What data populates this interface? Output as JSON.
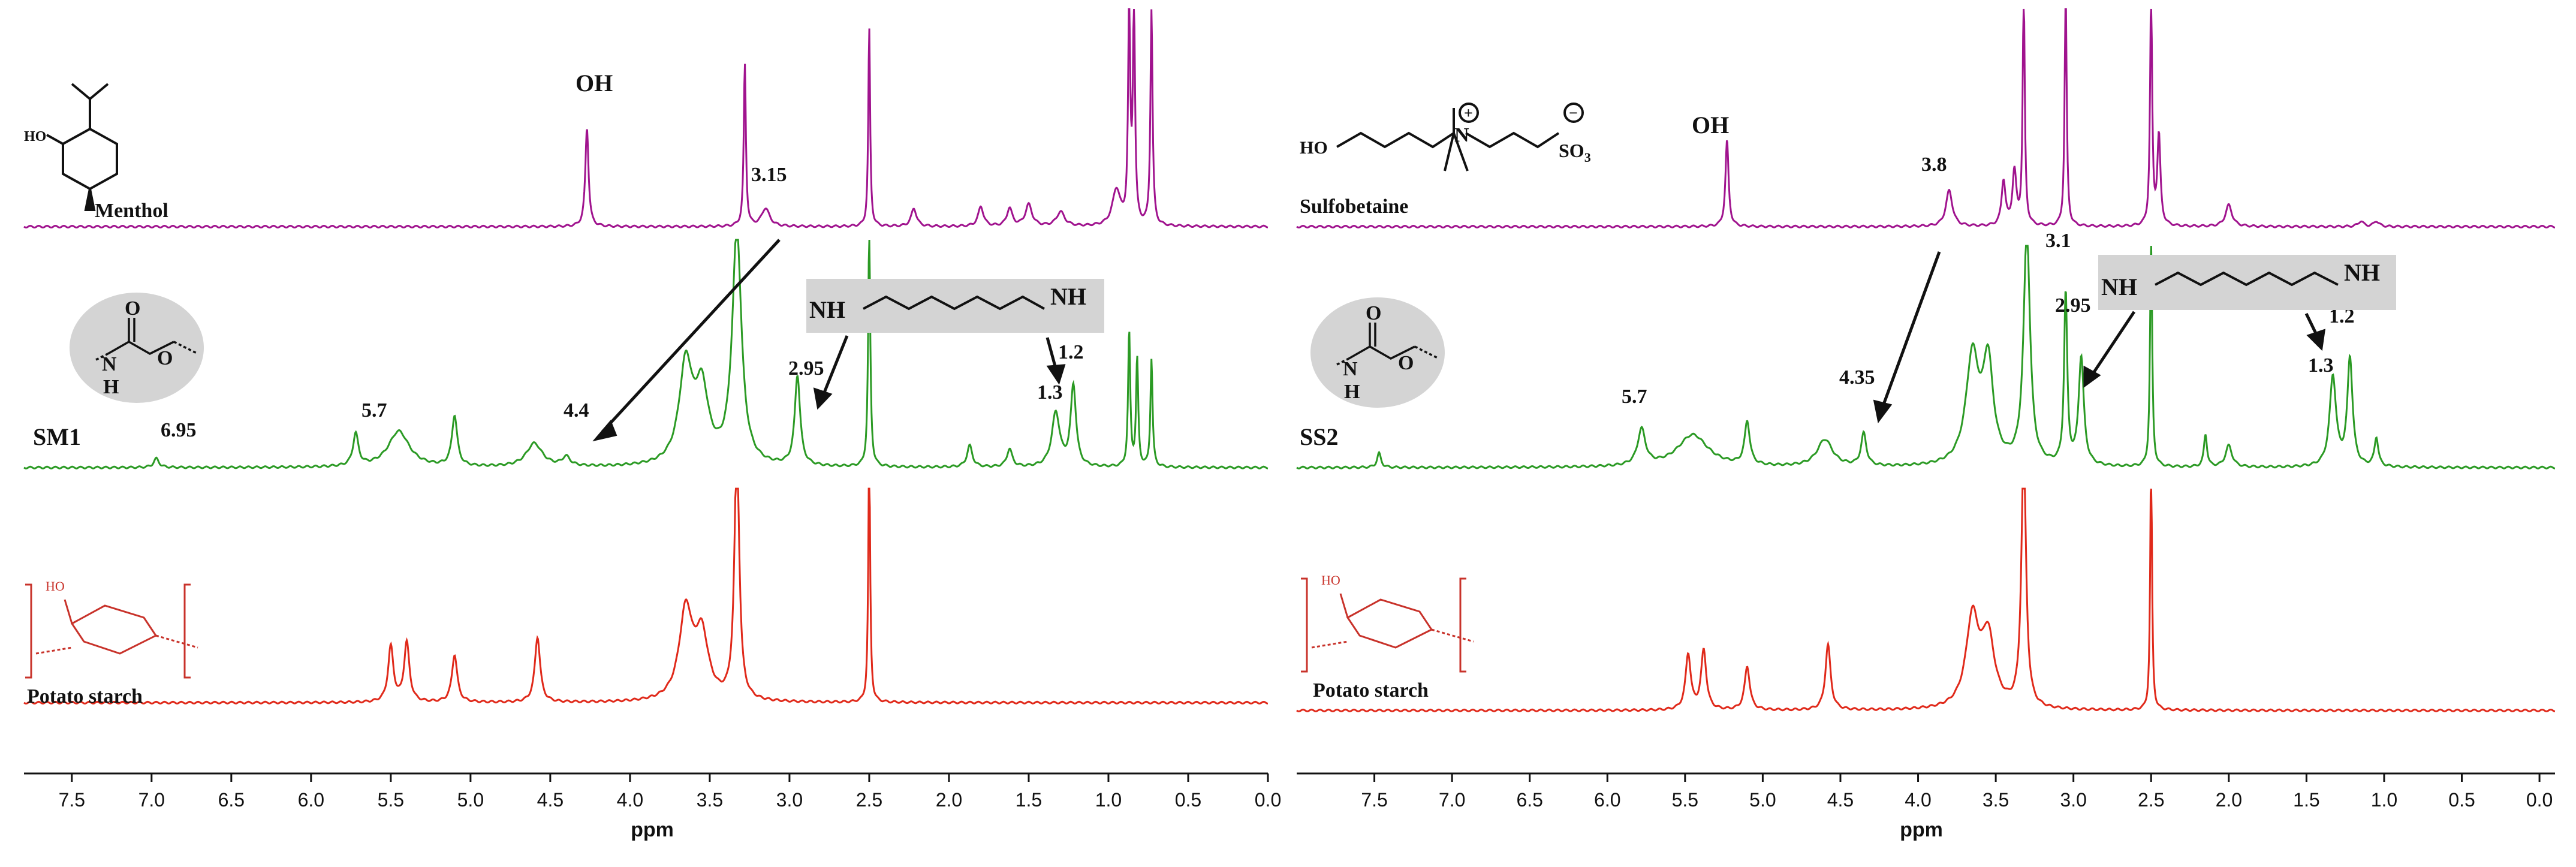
{
  "chart_data": [
    {
      "type": "line",
      "panel": "left",
      "xlabel": "ppm",
      "xlim": [
        7.8,
        0.0
      ],
      "xticks": [
        "7.5",
        "7.0",
        "6.5",
        "6.0",
        "5.5",
        "5.0",
        "4.5",
        "4.0",
        "3.5",
        "3.0",
        "2.5",
        "2.0",
        "1.5",
        "1.0",
        "0.5",
        "0.0"
      ],
      "series": [
        {
          "name": "Menthol",
          "color": "#a0138e",
          "peaks": [
            {
              "x": 4.27,
              "h": 0.55,
              "w": 0.012
            },
            {
              "x": 3.28,
              "h": 0.9,
              "w": 0.008
            },
            {
              "x": 3.15,
              "h": 0.1,
              "w": 0.03
            },
            {
              "x": 2.5,
              "h": 1.1,
              "w": 0.007
            },
            {
              "x": 2.22,
              "h": 0.1,
              "w": 0.02
            },
            {
              "x": 1.8,
              "h": 0.11,
              "w": 0.02
            },
            {
              "x": 1.62,
              "h": 0.1,
              "w": 0.02
            },
            {
              "x": 1.5,
              "h": 0.12,
              "w": 0.025
            },
            {
              "x": 1.3,
              "h": 0.08,
              "w": 0.03
            },
            {
              "x": 0.95,
              "h": 0.2,
              "w": 0.03
            },
            {
              "x": 0.87,
              "h": 1.2,
              "w": 0.008
            },
            {
              "x": 0.84,
              "h": 1.2,
              "w": 0.008
            },
            {
              "x": 0.73,
              "h": 1.2,
              "w": 0.008
            }
          ]
        },
        {
          "name": "SM1",
          "color": "#2b9a24",
          "peaks": [
            {
              "x": 6.97,
              "h": 0.05,
              "w": 0.02
            },
            {
              "x": 5.72,
              "h": 0.18,
              "w": 0.02
            },
            {
              "x": 5.45,
              "h": 0.2,
              "w": 0.08
            },
            {
              "x": 5.1,
              "h": 0.28,
              "w": 0.02
            },
            {
              "x": 4.6,
              "h": 0.13,
              "w": 0.06
            },
            {
              "x": 4.4,
              "h": 0.05,
              "w": 0.03
            },
            {
              "x": 3.65,
              "h": 0.55,
              "w": 0.05
            },
            {
              "x": 3.55,
              "h": 0.4,
              "w": 0.05
            },
            {
              "x": 3.33,
              "h": 1.3,
              "w": 0.035
            },
            {
              "x": 2.95,
              "h": 0.5,
              "w": 0.02
            },
            {
              "x": 2.5,
              "h": 1.3,
              "w": 0.008
            },
            {
              "x": 1.87,
              "h": 0.12,
              "w": 0.02
            },
            {
              "x": 1.62,
              "h": 0.1,
              "w": 0.02
            },
            {
              "x": 1.33,
              "h": 0.3,
              "w": 0.03
            },
            {
              "x": 1.22,
              "h": 0.45,
              "w": 0.02
            },
            {
              "x": 0.87,
              "h": 0.75,
              "w": 0.008
            },
            {
              "x": 0.82,
              "h": 0.6,
              "w": 0.008
            },
            {
              "x": 0.73,
              "h": 0.6,
              "w": 0.008
            }
          ]
        },
        {
          "name": "Potato starch",
          "color": "#e0291a",
          "peaks": [
            {
              "x": 5.5,
              "h": 0.28,
              "w": 0.02
            },
            {
              "x": 5.4,
              "h": 0.3,
              "w": 0.02
            },
            {
              "x": 5.1,
              "h": 0.24,
              "w": 0.02
            },
            {
              "x": 4.58,
              "h": 0.33,
              "w": 0.02
            },
            {
              "x": 3.65,
              "h": 0.45,
              "w": 0.05
            },
            {
              "x": 3.55,
              "h": 0.32,
              "w": 0.05
            },
            {
              "x": 3.33,
              "h": 1.3,
              "w": 0.018
            },
            {
              "x": 2.5,
              "h": 1.3,
              "w": 0.007
            }
          ]
        }
      ]
    },
    {
      "type": "line",
      "panel": "right",
      "xlabel": "ppm",
      "xlim": [
        8.0,
        -0.1
      ],
      "xticks": [
        "7.5",
        "7.0",
        "6.5",
        "6.0",
        "5.5",
        "5.0",
        "4.5",
        "4.0",
        "3.5",
        "3.0",
        "2.5",
        "2.0",
        "1.5",
        "1.0",
        "0.5",
        "0.0"
      ],
      "series": [
        {
          "name": "Sulfobetaine",
          "color": "#a0138e",
          "peaks": [
            {
              "x": 5.23,
              "h": 0.48,
              "w": 0.012
            },
            {
              "x": 3.8,
              "h": 0.2,
              "w": 0.025
            },
            {
              "x": 3.45,
              "h": 0.25,
              "w": 0.015
            },
            {
              "x": 3.38,
              "h": 0.3,
              "w": 0.015
            },
            {
              "x": 3.32,
              "h": 1.3,
              "w": 0.008
            },
            {
              "x": 3.05,
              "h": 1.3,
              "w": 0.008
            },
            {
              "x": 2.5,
              "h": 1.3,
              "w": 0.008
            },
            {
              "x": 2.45,
              "h": 0.5,
              "w": 0.012
            },
            {
              "x": 2.0,
              "h": 0.12,
              "w": 0.025
            },
            {
              "x": 1.15,
              "h": 0.03,
              "w": 0.02
            },
            {
              "x": 1.05,
              "h": 0.03,
              "w": 0.02
            }
          ]
        },
        {
          "name": "SS2",
          "color": "#2b9a24",
          "peaks": [
            {
              "x": 7.47,
              "h": 0.08,
              "w": 0.015
            },
            {
              "x": 5.78,
              "h": 0.2,
              "w": 0.03
            },
            {
              "x": 5.45,
              "h": 0.18,
              "w": 0.12
            },
            {
              "x": 5.1,
              "h": 0.24,
              "w": 0.02
            },
            {
              "x": 4.6,
              "h": 0.15,
              "w": 0.06
            },
            {
              "x": 4.35,
              "h": 0.18,
              "w": 0.02
            },
            {
              "x": 3.65,
              "h": 0.6,
              "w": 0.05
            },
            {
              "x": 3.55,
              "h": 0.55,
              "w": 0.04
            },
            {
              "x": 3.3,
              "h": 1.3,
              "w": 0.025
            },
            {
              "x": 3.05,
              "h": 0.95,
              "w": 0.012
            },
            {
              "x": 2.95,
              "h": 0.6,
              "w": 0.02
            },
            {
              "x": 2.5,
              "h": 1.3,
              "w": 0.008
            },
            {
              "x": 2.15,
              "h": 0.18,
              "w": 0.012
            },
            {
              "x": 2.0,
              "h": 0.12,
              "w": 0.025
            },
            {
              "x": 1.33,
              "h": 0.5,
              "w": 0.025
            },
            {
              "x": 1.22,
              "h": 0.6,
              "w": 0.02
            },
            {
              "x": 1.05,
              "h": 0.16,
              "w": 0.015
            }
          ]
        },
        {
          "name": "Potato starch",
          "color": "#e0291a",
          "peaks": [
            {
              "x": 5.48,
              "h": 0.28,
              "w": 0.02
            },
            {
              "x": 5.38,
              "h": 0.3,
              "w": 0.02
            },
            {
              "x": 5.1,
              "h": 0.22,
              "w": 0.02
            },
            {
              "x": 4.58,
              "h": 0.33,
              "w": 0.02
            },
            {
              "x": 3.65,
              "h": 0.45,
              "w": 0.05
            },
            {
              "x": 3.55,
              "h": 0.35,
              "w": 0.05
            },
            {
              "x": 3.32,
              "h": 1.3,
              "w": 0.018
            },
            {
              "x": 2.5,
              "h": 1.3,
              "w": 0.007
            }
          ]
        }
      ]
    }
  ],
  "labels": {
    "left": {
      "menthol": "Menthol",
      "oh": "OH",
      "p315": "3.15",
      "sm1": "SM1",
      "p695": "6.95",
      "p57": "5.7",
      "p44": "4.4",
      "p295": "2.95",
      "p12": "1.2",
      "p13": "1.3",
      "nh_left": "NH",
      "nh_right": "NH",
      "potato": "Potato starch",
      "carbamate_o": "O",
      "carbamate_o2": "O",
      "carbamate_n": "N",
      "carbamate_h": "H",
      "menthol_ho": "HO"
    },
    "right": {
      "sulfobetaine": "Sulfobetaine",
      "oh": "OH",
      "p38": "3.8",
      "p31": "3.1",
      "ss2": "SS2",
      "p57": "5.7",
      "p435": "4.35",
      "p295": "2.95",
      "p12": "1.2",
      "p13": "1.3",
      "nh_left": "NH",
      "nh_right": "NH",
      "potato": "Potato starch",
      "carbamate_o": "O",
      "carbamate_o2": "O",
      "carbamate_n": "N",
      "carbamate_h": "H",
      "sb_ho": "HO",
      "sb_n": "N",
      "sb_plus": "+",
      "sb_minus": "−",
      "sb_so3": "SO",
      "sb_so3_sub": "3"
    }
  }
}
